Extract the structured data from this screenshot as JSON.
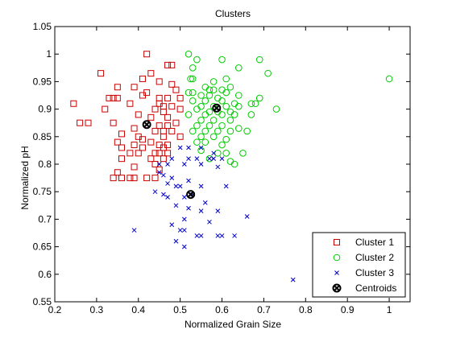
{
  "chart_data": {
    "type": "scatter",
    "title": "Clusters",
    "xlabel": "Normalized Grain Size",
    "ylabel": "Normalized pH",
    "xlim": [
      0.2,
      1.05
    ],
    "ylim": [
      0.55,
      1.05
    ],
    "xticks": [
      "0.2",
      "0.3",
      "0.4",
      "0.5",
      "0.6",
      "0.7",
      "0.8",
      "0.9",
      "1"
    ],
    "xtick_values": [
      0.2,
      0.3,
      0.4,
      0.5,
      0.6,
      0.7,
      0.8,
      0.9,
      1.0
    ],
    "yticks": [
      "0.55",
      "0.6",
      "0.65",
      "0.7",
      "0.75",
      "0.8",
      "0.85",
      "0.9",
      "0.95",
      "1",
      "1.05"
    ],
    "ytick_values": [
      0.55,
      0.6,
      0.65,
      0.7,
      0.75,
      0.8,
      0.85,
      0.9,
      0.95,
      1.0,
      1.05
    ],
    "grid": false,
    "legend_position": "bottom-right",
    "series": [
      {
        "name": "Cluster 1",
        "marker": "square",
        "color": "#cc0000",
        "points": [
          [
            0.42,
            1.0
          ],
          [
            0.47,
            0.98
          ],
          [
            0.48,
            0.98
          ],
          [
            0.31,
            0.965
          ],
          [
            0.43,
            0.965
          ],
          [
            0.41,
            0.955
          ],
          [
            0.35,
            0.94
          ],
          [
            0.39,
            0.94
          ],
          [
            0.45,
            0.95
          ],
          [
            0.48,
            0.945
          ],
          [
            0.49,
            0.935
          ],
          [
            0.33,
            0.92
          ],
          [
            0.34,
            0.92
          ],
          [
            0.35,
            0.92
          ],
          [
            0.41,
            0.925
          ],
          [
            0.42,
            0.93
          ],
          [
            0.45,
            0.92
          ],
          [
            0.47,
            0.92
          ],
          [
            0.5,
            0.92
          ],
          [
            0.245,
            0.91
          ],
          [
            0.38,
            0.91
          ],
          [
            0.45,
            0.91
          ],
          [
            0.46,
            0.905
          ],
          [
            0.48,
            0.905
          ],
          [
            0.32,
            0.9
          ],
          [
            0.44,
            0.9
          ],
          [
            0.46,
            0.895
          ],
          [
            0.5,
            0.9
          ],
          [
            0.4,
            0.89
          ],
          [
            0.43,
            0.885
          ],
          [
            0.47,
            0.885
          ],
          [
            0.26,
            0.875
          ],
          [
            0.28,
            0.875
          ],
          [
            0.34,
            0.875
          ],
          [
            0.45,
            0.87
          ],
          [
            0.47,
            0.87
          ],
          [
            0.49,
            0.875
          ],
          [
            0.39,
            0.865
          ],
          [
            0.44,
            0.86
          ],
          [
            0.46,
            0.86
          ],
          [
            0.48,
            0.86
          ],
          [
            0.36,
            0.855
          ],
          [
            0.4,
            0.85
          ],
          [
            0.41,
            0.845
          ],
          [
            0.46,
            0.85
          ],
          [
            0.5,
            0.85
          ],
          [
            0.35,
            0.84
          ],
          [
            0.39,
            0.835
          ],
          [
            0.43,
            0.84
          ],
          [
            0.45,
            0.835
          ],
          [
            0.47,
            0.835
          ],
          [
            0.36,
            0.83
          ],
          [
            0.41,
            0.83
          ],
          [
            0.46,
            0.83
          ],
          [
            0.38,
            0.82
          ],
          [
            0.4,
            0.82
          ],
          [
            0.44,
            0.82
          ],
          [
            0.45,
            0.82
          ],
          [
            0.47,
            0.82
          ],
          [
            0.36,
            0.81
          ],
          [
            0.43,
            0.81
          ],
          [
            0.46,
            0.81
          ],
          [
            0.44,
            0.8
          ],
          [
            0.39,
            0.795
          ],
          [
            0.45,
            0.79
          ],
          [
            0.35,
            0.785
          ],
          [
            0.34,
            0.775
          ],
          [
            0.36,
            0.775
          ],
          [
            0.38,
            0.775
          ],
          [
            0.39,
            0.775
          ],
          [
            0.42,
            0.775
          ],
          [
            0.44,
            0.775
          ]
        ]
      },
      {
        "name": "Cluster 2",
        "marker": "circle",
        "color": "#00cc00",
        "points": [
          [
            0.52,
            1.0
          ],
          [
            0.54,
            0.99
          ],
          [
            0.6,
            0.99
          ],
          [
            0.69,
            0.99
          ],
          [
            0.53,
            0.975
          ],
          [
            0.64,
            0.975
          ],
          [
            0.71,
            0.965
          ],
          [
            0.525,
            0.955
          ],
          [
            0.53,
            0.955
          ],
          [
            0.58,
            0.95
          ],
          [
            0.61,
            0.955
          ],
          [
            1.0,
            0.955
          ],
          [
            0.56,
            0.94
          ],
          [
            0.57,
            0.935
          ],
          [
            0.52,
            0.93
          ],
          [
            0.53,
            0.93
          ],
          [
            0.58,
            0.935
          ],
          [
            0.6,
            0.935
          ],
          [
            0.62,
            0.94
          ],
          [
            0.55,
            0.925
          ],
          [
            0.57,
            0.925
          ],
          [
            0.59,
            0.92
          ],
          [
            0.61,
            0.93
          ],
          [
            0.64,
            0.925
          ],
          [
            0.69,
            0.92
          ],
          [
            0.53,
            0.915
          ],
          [
            0.56,
            0.915
          ],
          [
            0.6,
            0.915
          ],
          [
            0.63,
            0.91
          ],
          [
            0.67,
            0.91
          ],
          [
            0.68,
            0.91
          ],
          [
            0.55,
            0.905
          ],
          [
            0.58,
            0.905
          ],
          [
            0.61,
            0.905
          ],
          [
            0.64,
            0.905
          ],
          [
            0.73,
            0.9
          ],
          [
            0.54,
            0.9
          ],
          [
            0.57,
            0.895
          ],
          [
            0.59,
            0.895
          ],
          [
            0.62,
            0.895
          ],
          [
            0.52,
            0.89
          ],
          [
            0.56,
            0.89
          ],
          [
            0.6,
            0.89
          ],
          [
            0.63,
            0.89
          ],
          [
            0.67,
            0.89
          ],
          [
            0.55,
            0.88
          ],
          [
            0.58,
            0.88
          ],
          [
            0.62,
            0.88
          ],
          [
            0.54,
            0.87
          ],
          [
            0.57,
            0.87
          ],
          [
            0.6,
            0.87
          ],
          [
            0.64,
            0.865
          ],
          [
            0.53,
            0.86
          ],
          [
            0.56,
            0.86
          ],
          [
            0.59,
            0.86
          ],
          [
            0.62,
            0.86
          ],
          [
            0.66,
            0.86
          ],
          [
            0.55,
            0.85
          ],
          [
            0.58,
            0.85
          ],
          [
            0.61,
            0.845
          ],
          [
            0.54,
            0.84
          ],
          [
            0.56,
            0.84
          ],
          [
            0.6,
            0.835
          ],
          [
            0.55,
            0.825
          ],
          [
            0.59,
            0.82
          ],
          [
            0.61,
            0.82
          ],
          [
            0.65,
            0.82
          ],
          [
            0.57,
            0.81
          ],
          [
            0.62,
            0.805
          ],
          [
            0.63,
            0.8
          ]
        ]
      },
      {
        "name": "Cluster 3",
        "marker": "x",
        "color": "#0000cc",
        "points": [
          [
            0.5,
            0.83
          ],
          [
            0.52,
            0.83
          ],
          [
            0.55,
            0.83
          ],
          [
            0.58,
            0.82
          ],
          [
            0.48,
            0.81
          ],
          [
            0.52,
            0.81
          ],
          [
            0.54,
            0.81
          ],
          [
            0.57,
            0.81
          ],
          [
            0.58,
            0.81
          ],
          [
            0.6,
            0.81
          ],
          [
            0.45,
            0.8
          ],
          [
            0.47,
            0.8
          ],
          [
            0.51,
            0.8
          ],
          [
            0.55,
            0.8
          ],
          [
            0.59,
            0.795
          ],
          [
            0.45,
            0.785
          ],
          [
            0.46,
            0.78
          ],
          [
            0.48,
            0.775
          ],
          [
            0.52,
            0.77
          ],
          [
            0.47,
            0.765
          ],
          [
            0.49,
            0.76
          ],
          [
            0.5,
            0.76
          ],
          [
            0.55,
            0.76
          ],
          [
            0.61,
            0.76
          ],
          [
            0.44,
            0.75
          ],
          [
            0.46,
            0.745
          ],
          [
            0.51,
            0.74
          ],
          [
            0.53,
            0.745
          ],
          [
            0.47,
            0.74
          ],
          [
            0.56,
            0.73
          ],
          [
            0.49,
            0.725
          ],
          [
            0.52,
            0.72
          ],
          [
            0.55,
            0.715
          ],
          [
            0.59,
            0.715
          ],
          [
            0.51,
            0.7
          ],
          [
            0.57,
            0.695
          ],
          [
            0.48,
            0.69
          ],
          [
            0.66,
            0.705
          ],
          [
            0.39,
            0.68
          ],
          [
            0.5,
            0.68
          ],
          [
            0.51,
            0.68
          ],
          [
            0.54,
            0.67
          ],
          [
            0.55,
            0.67
          ],
          [
            0.59,
            0.67
          ],
          [
            0.6,
            0.67
          ],
          [
            0.63,
            0.67
          ],
          [
            0.49,
            0.66
          ],
          [
            0.51,
            0.65
          ],
          [
            0.77,
            0.59
          ]
        ]
      },
      {
        "name": "Centroids",
        "marker": "circled-x",
        "color": "#000000",
        "points": [
          [
            0.42,
            0.872
          ],
          [
            0.587,
            0.902
          ],
          [
            0.525,
            0.745
          ]
        ]
      }
    ]
  }
}
